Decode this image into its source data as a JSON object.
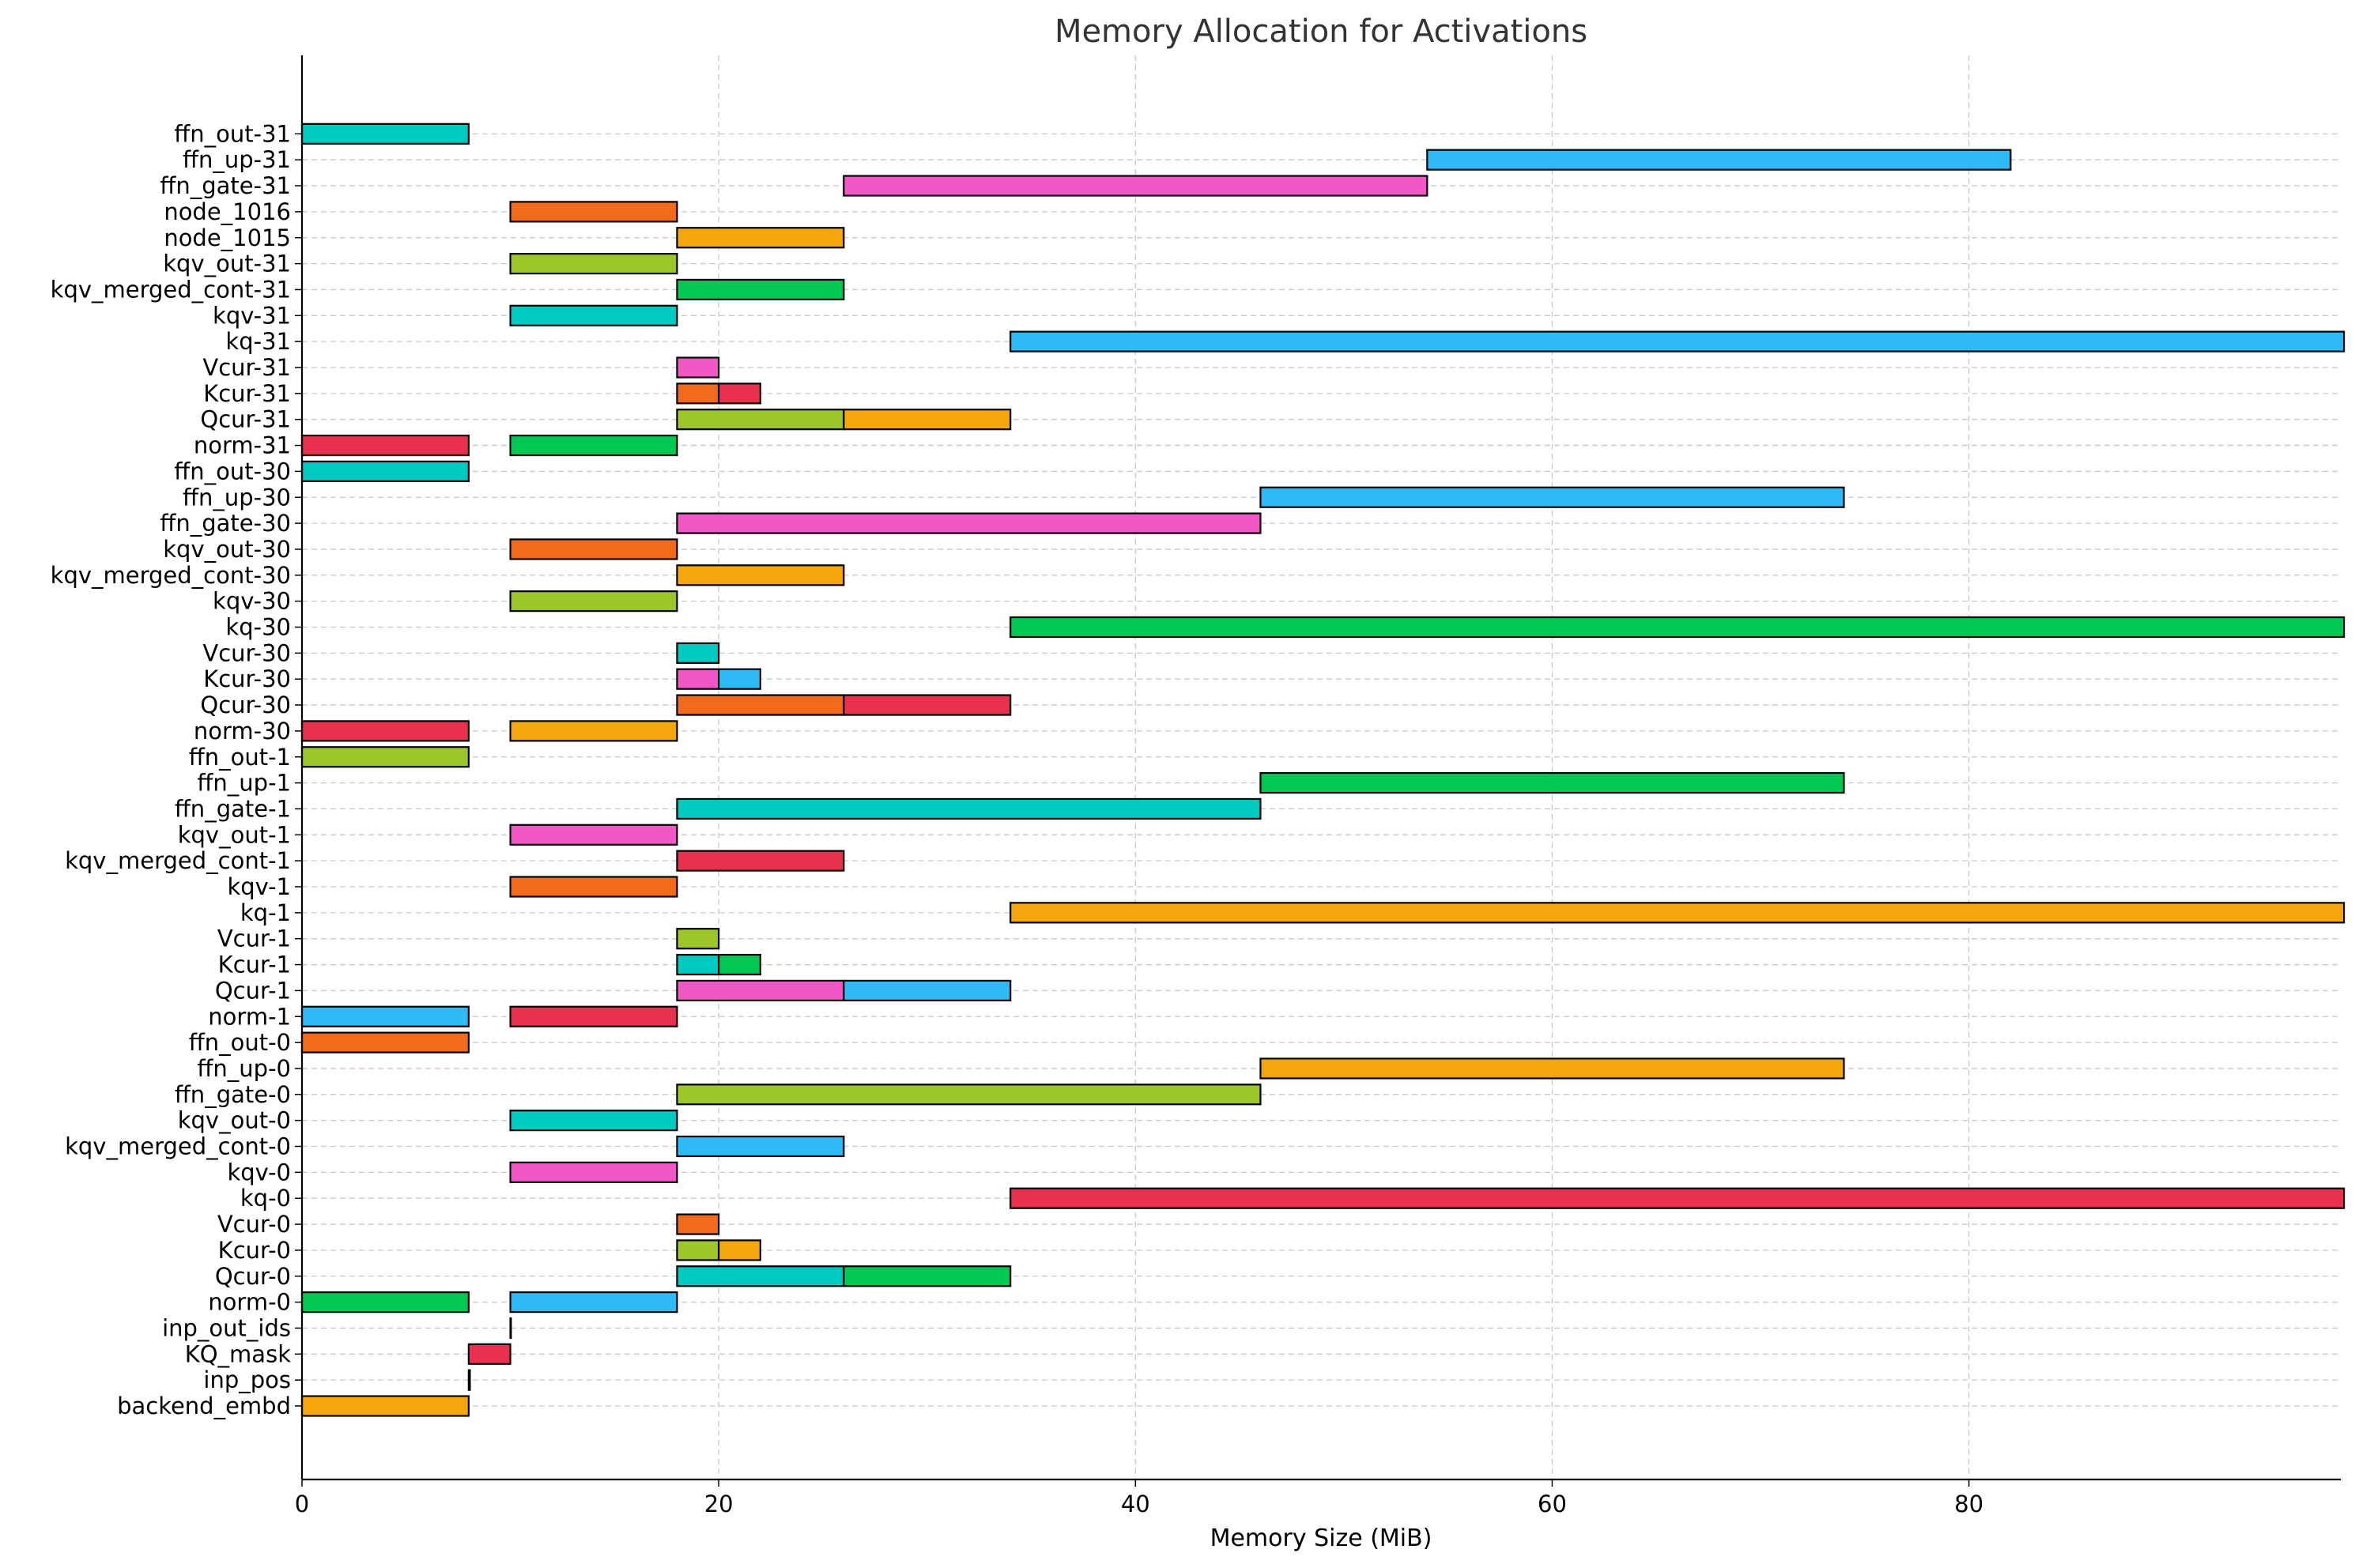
{
  "chart_data": {
    "type": "bar",
    "orientation": "horizontal",
    "title": "Memory Allocation for Activations",
    "xlabel": "Memory Size (MiB)",
    "ylabel": "",
    "xlim": [
      0,
      103
    ],
    "xticks": [
      0,
      20,
      40,
      60,
      80,
      100
    ],
    "grid": true,
    "colors": [
      "#F4A60D",
      "#E8304F",
      "#00C853",
      "#2EBBF5",
      "#F257C7",
      "#00C9C1",
      "#9DC62B",
      "#F26B1D"
    ],
    "categories": [
      "backend_embd",
      "inp_pos",
      "KQ_mask",
      "inp_out_ids",
      "norm-0",
      "Qcur-0",
      "Kcur-0",
      "Vcur-0",
      "kq-0",
      "kqv-0",
      "kqv_merged_cont-0",
      "kqv_out-0",
      "ffn_gate-0",
      "ffn_up-0",
      "ffn_out-0",
      "norm-1",
      "Qcur-1",
      "Kcur-1",
      "Vcur-1",
      "kq-1",
      "kqv-1",
      "kqv_merged_cont-1",
      "kqv_out-1",
      "ffn_gate-1",
      "ffn_up-1",
      "ffn_out-1",
      "norm-30",
      "Qcur-30",
      "Kcur-30",
      "Vcur-30",
      "kq-30",
      "kqv-30",
      "kqv_merged_cont-30",
      "kqv_out-30",
      "ffn_gate-30",
      "ffn_up-30",
      "ffn_out-30",
      "norm-31",
      "Qcur-31",
      "Kcur-31",
      "Vcur-31",
      "kq-31",
      "kqv-31",
      "kqv_merged_cont-31",
      "kqv_out-31",
      "node_1015",
      "node_1016",
      "ffn_gate-31",
      "ffn_up-31",
      "ffn_out-31"
    ],
    "segments": [
      {
        "row": 0,
        "start": 0,
        "end": 8,
        "color": "#F4A60D"
      },
      {
        "row": 1,
        "start": 8,
        "end": 8.06,
        "color": "#00C853"
      },
      {
        "row": 2,
        "start": 8,
        "end": 10,
        "color": "#E8304F"
      },
      {
        "row": 3,
        "start": 10,
        "end": 10.03,
        "color": "#00C853"
      },
      {
        "row": 4,
        "start": 0,
        "end": 8,
        "color": "#00C853"
      },
      {
        "row": 4,
        "start": 10,
        "end": 18,
        "color": "#2EBBF5"
      },
      {
        "row": 5,
        "start": 18,
        "end": 26,
        "color": "#00C9C1"
      },
      {
        "row": 5,
        "start": 26,
        "end": 34,
        "color": "#00C853"
      },
      {
        "row": 6,
        "start": 18,
        "end": 20,
        "color": "#9DC62B"
      },
      {
        "row": 6,
        "start": 20,
        "end": 22,
        "color": "#F4A60D"
      },
      {
        "row": 7,
        "start": 18,
        "end": 20,
        "color": "#F26B1D"
      },
      {
        "row": 8,
        "start": 34,
        "end": 98,
        "color": "#E8304F"
      },
      {
        "row": 9,
        "start": 10,
        "end": 18,
        "color": "#F257C7"
      },
      {
        "row": 10,
        "start": 18,
        "end": 26,
        "color": "#2EBBF5"
      },
      {
        "row": 11,
        "start": 10,
        "end": 18,
        "color": "#00C9C1"
      },
      {
        "row": 12,
        "start": 18,
        "end": 46,
        "color": "#9DC62B"
      },
      {
        "row": 13,
        "start": 46,
        "end": 74,
        "color": "#F4A60D"
      },
      {
        "row": 14,
        "start": 0,
        "end": 8,
        "color": "#F26B1D"
      },
      {
        "row": 15,
        "start": 0,
        "end": 8,
        "color": "#2EBBF5"
      },
      {
        "row": 15,
        "start": 10,
        "end": 18,
        "color": "#E8304F"
      },
      {
        "row": 16,
        "start": 18,
        "end": 26,
        "color": "#F257C7"
      },
      {
        "row": 16,
        "start": 26,
        "end": 34,
        "color": "#2EBBF5"
      },
      {
        "row": 17,
        "start": 18,
        "end": 20,
        "color": "#00C9C1"
      },
      {
        "row": 17,
        "start": 20,
        "end": 22,
        "color": "#00C853"
      },
      {
        "row": 18,
        "start": 18,
        "end": 20,
        "color": "#9DC62B"
      },
      {
        "row": 19,
        "start": 34,
        "end": 98,
        "color": "#F4A60D"
      },
      {
        "row": 20,
        "start": 10,
        "end": 18,
        "color": "#F26B1D"
      },
      {
        "row": 21,
        "start": 18,
        "end": 26,
        "color": "#E8304F"
      },
      {
        "row": 22,
        "start": 10,
        "end": 18,
        "color": "#F257C7"
      },
      {
        "row": 23,
        "start": 18,
        "end": 46,
        "color": "#00C9C1"
      },
      {
        "row": 24,
        "start": 46,
        "end": 74,
        "color": "#00C853"
      },
      {
        "row": 25,
        "start": 0,
        "end": 8,
        "color": "#9DC62B"
      },
      {
        "row": 26,
        "start": 0,
        "end": 8,
        "color": "#E8304F"
      },
      {
        "row": 26,
        "start": 10,
        "end": 18,
        "color": "#F4A60D"
      },
      {
        "row": 27,
        "start": 18,
        "end": 26,
        "color": "#F26B1D"
      },
      {
        "row": 27,
        "start": 26,
        "end": 34,
        "color": "#E8304F"
      },
      {
        "row": 28,
        "start": 18,
        "end": 20,
        "color": "#F257C7"
      },
      {
        "row": 28,
        "start": 20,
        "end": 22,
        "color": "#2EBBF5"
      },
      {
        "row": 29,
        "start": 18,
        "end": 20,
        "color": "#00C9C1"
      },
      {
        "row": 30,
        "start": 34,
        "end": 98,
        "color": "#00C853"
      },
      {
        "row": 31,
        "start": 10,
        "end": 18,
        "color": "#9DC62B"
      },
      {
        "row": 32,
        "start": 18,
        "end": 26,
        "color": "#F4A60D"
      },
      {
        "row": 33,
        "start": 10,
        "end": 18,
        "color": "#F26B1D"
      },
      {
        "row": 34,
        "start": 18,
        "end": 46,
        "color": "#F257C7"
      },
      {
        "row": 35,
        "start": 46,
        "end": 74,
        "color": "#2EBBF5"
      },
      {
        "row": 36,
        "start": 0,
        "end": 8,
        "color": "#00C9C1"
      },
      {
        "row": 37,
        "start": 0,
        "end": 8,
        "color": "#E8304F"
      },
      {
        "row": 37,
        "start": 10,
        "end": 18,
        "color": "#00C853"
      },
      {
        "row": 38,
        "start": 18,
        "end": 26,
        "color": "#9DC62B"
      },
      {
        "row": 38,
        "start": 26,
        "end": 34,
        "color": "#F4A60D"
      },
      {
        "row": 39,
        "start": 18,
        "end": 20,
        "color": "#F26B1D"
      },
      {
        "row": 39,
        "start": 20,
        "end": 22,
        "color": "#E8304F"
      },
      {
        "row": 40,
        "start": 18,
        "end": 20,
        "color": "#F257C7"
      },
      {
        "row": 41,
        "start": 34,
        "end": 98,
        "color": "#2EBBF5"
      },
      {
        "row": 42,
        "start": 10,
        "end": 18,
        "color": "#00C9C1"
      },
      {
        "row": 43,
        "start": 18,
        "end": 26,
        "color": "#00C853"
      },
      {
        "row": 44,
        "start": 10,
        "end": 18,
        "color": "#9DC62B"
      },
      {
        "row": 45,
        "start": 18,
        "end": 26,
        "color": "#F4A60D"
      },
      {
        "row": 46,
        "start": 10,
        "end": 18,
        "color": "#F26B1D"
      },
      {
        "row": 47,
        "start": 26,
        "end": 54,
        "color": "#F257C7"
      },
      {
        "row": 48,
        "start": 54,
        "end": 82,
        "color": "#2EBBF5"
      },
      {
        "row": 49,
        "start": 0,
        "end": 8,
        "color": "#00C9C1"
      }
    ]
  }
}
